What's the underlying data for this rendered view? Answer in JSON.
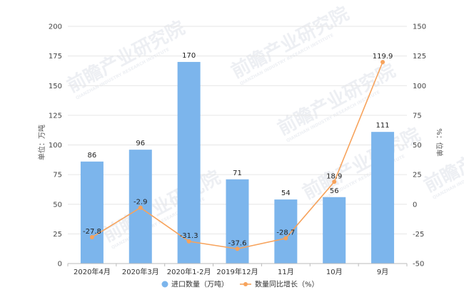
{
  "chart_data": {
    "type": "bar+line",
    "categories": [
      "2020年4月",
      "2020年3月",
      "2020年1-2月",
      "2019年12月",
      "11月",
      "10月",
      "9月"
    ],
    "series": [
      {
        "name": "进口数量（万吨）",
        "type": "bar",
        "axis": "left",
        "values": [
          86,
          96,
          170,
          71,
          54,
          56,
          111
        ],
        "labels": [
          "86",
          "96",
          "170",
          "71",
          "54",
          "56",
          "111"
        ]
      },
      {
        "name": "数量同比增长（%）",
        "type": "line",
        "axis": "right",
        "values": [
          -27.8,
          -2.9,
          -31.3,
          -37.6,
          -28.7,
          18.9,
          119.9
        ],
        "labels": [
          "-27.8",
          "-2.9",
          "-31.3",
          "-37.6",
          "-28.7",
          "18.9",
          "119.9"
        ]
      }
    ],
    "ylabel": "单位：万吨",
    "y2label": "%：位单",
    "ylim": [
      0,
      200
    ],
    "y2lim": [
      -50,
      150
    ],
    "yticks": [
      "0",
      "25",
      "50",
      "75",
      "100",
      "125",
      "150",
      "175",
      "200"
    ],
    "y2ticks": [
      "-50",
      "-25",
      "0",
      "25",
      "50",
      "75",
      "100",
      "125",
      "150"
    ],
    "grid": "horizontal",
    "legend": "bottom-center",
    "colors": {
      "bar": "#7cb5ec",
      "line": "#f7a35c",
      "grid": "#e6e6e6"
    }
  },
  "watermark": {
    "text": "前瞻产业研究院",
    "sub": "QIANZHAN INDUSTRY RESEARCH INSTITUTE"
  }
}
